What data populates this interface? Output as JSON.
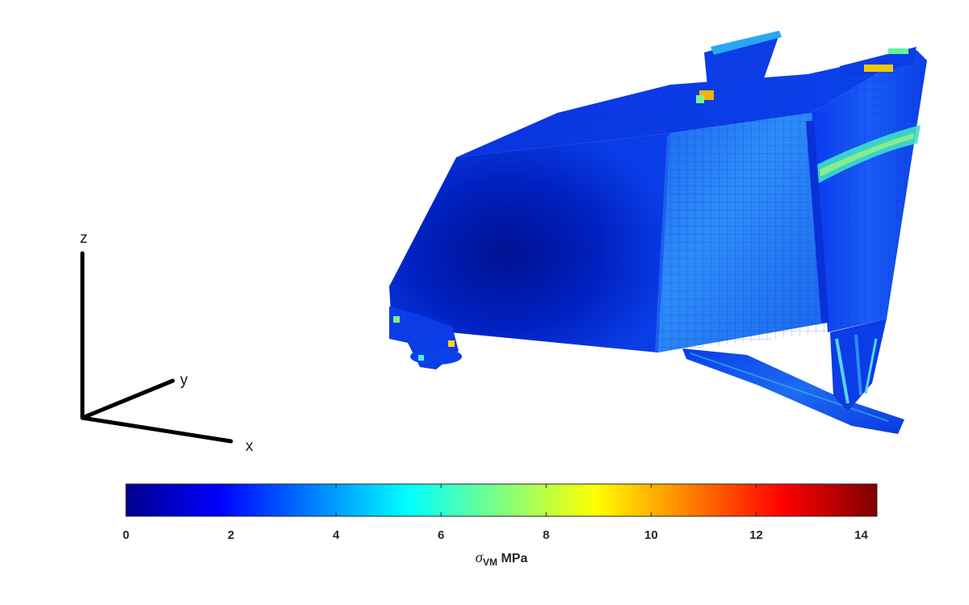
{
  "axes_triad": {
    "x_label": "x",
    "y_label": "y",
    "z_label": "z"
  },
  "colorbar": {
    "title_symbol": "σ",
    "title_subscript": "VM",
    "title_unit": " MPa",
    "min": 0,
    "max": 14.3,
    "ticks": [
      "0",
      "2",
      "4",
      "6",
      "8",
      "10",
      "12",
      "14"
    ],
    "colormap": "jet",
    "colors": [
      "#00008f",
      "#0000ff",
      "#00ffff",
      "#ffff00",
      "#ff0000",
      "#800000"
    ]
  },
  "colors": {
    "axes": "#000000",
    "background": "#ffffff"
  }
}
